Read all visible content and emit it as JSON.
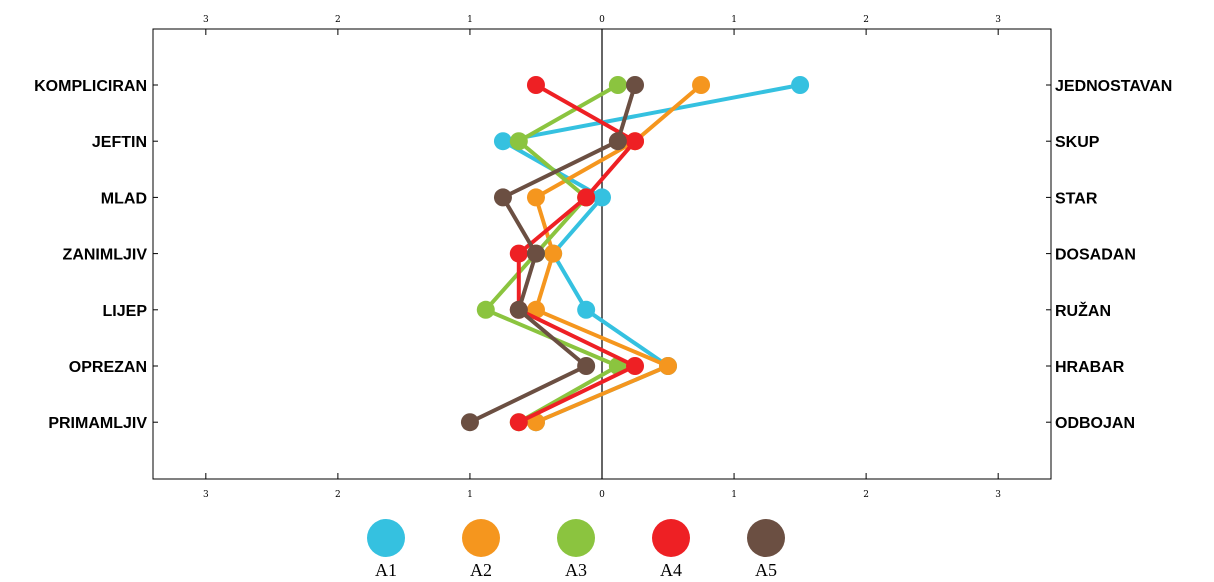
{
  "chart_data": {
    "type": "line",
    "x_ticks": [
      3,
      2,
      1,
      0,
      1,
      2,
      3
    ],
    "xlim": [
      -3.4,
      3.4
    ],
    "left_labels": [
      "KOMPLICIRAN",
      "JEFTIN",
      "MLAD",
      "ZANIMLJIV",
      "LIJEP",
      "OPREZAN",
      "PRIMAMLJIV"
    ],
    "right_labels": [
      "JEDNOSTAVAN",
      "SKUP",
      "STAR",
      "DOSADAN",
      "RUŽAN",
      "HRABAR",
      "ODBOJAN"
    ],
    "series": [
      {
        "name": "A1",
        "color": "#35C1E0",
        "values": [
          1.5,
          -0.75,
          0.0,
          -0.37,
          -0.12,
          0.5,
          -0.5
        ]
      },
      {
        "name": "A2",
        "color": "#F5961E",
        "values": [
          0.75,
          0.25,
          -0.5,
          -0.37,
          -0.5,
          0.5,
          -0.5
        ]
      },
      {
        "name": "A3",
        "color": "#8BC43F",
        "values": [
          0.12,
          -0.63,
          -0.12,
          -0.5,
          -0.88,
          0.12,
          -0.63
        ]
      },
      {
        "name": "A4",
        "color": "#EE2024",
        "values": [
          -0.5,
          0.25,
          -0.12,
          -0.63,
          -0.63,
          0.25,
          -0.63
        ]
      },
      {
        "name": "A5",
        "color": "#6B4F42",
        "values": [
          0.25,
          0.12,
          -0.75,
          -0.5,
          -0.63,
          -0.12,
          -1.0
        ]
      }
    ],
    "legend_position": "bottom",
    "grid": false
  }
}
